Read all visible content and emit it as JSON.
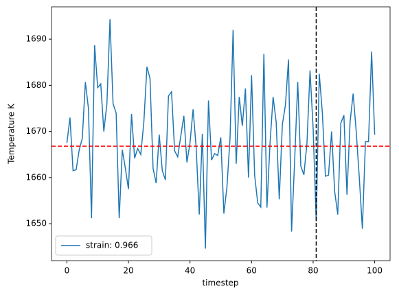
{
  "chart_data": {
    "type": "line",
    "x_label": "timestep",
    "y_label": "Temperature K",
    "x": [
      0,
      1,
      2,
      3,
      4,
      5,
      6,
      7,
      8,
      9,
      10,
      11,
      12,
      13,
      14,
      15,
      16,
      17,
      18,
      19,
      20,
      21,
      22,
      23,
      24,
      25,
      26,
      27,
      28,
      29,
      30,
      31,
      32,
      33,
      34,
      35,
      36,
      37,
      38,
      39,
      40,
      41,
      42,
      43,
      44,
      45,
      46,
      47,
      48,
      49,
      50,
      51,
      52,
      53,
      54,
      55,
      56,
      57,
      58,
      59,
      60,
      61,
      62,
      63,
      64,
      65,
      66,
      67,
      68,
      69,
      70,
      71,
      72,
      73,
      74,
      75,
      76,
      77,
      78,
      79,
      80,
      81,
      82,
      83,
      84,
      85,
      86,
      87,
      88,
      89,
      90,
      91,
      92,
      93,
      94,
      95,
      96,
      97,
      98,
      99,
      100
    ],
    "series": [
      {
        "name": "strain: 0.966",
        "color": "#1f77b4",
        "values": [
          1667.5,
          1673,
          1661.5,
          1661.7,
          1666,
          1668.5,
          1680.7,
          1675,
          1651.2,
          1688.7,
          1679.5,
          1680.3,
          1670,
          1676,
          1694.3,
          1676,
          1674,
          1651.2,
          1666,
          1662,
          1657.5,
          1673.8,
          1664.2,
          1666.3,
          1665,
          1672,
          1684,
          1681.5,
          1662,
          1658.8,
          1669.3,
          1661.5,
          1659.5,
          1677.7,
          1678.6,
          1665.8,
          1664.5,
          1669,
          1673.4,
          1663.3,
          1667.5,
          1674.8,
          1666.5,
          1652,
          1669.5,
          1644.6,
          1676.7,
          1663.8,
          1665.2,
          1664.8,
          1668.7,
          1652.2,
          1658,
          1668.5,
          1692,
          1663,
          1677.5,
          1671.2,
          1679.3,
          1660,
          1682.2,
          1660.5,
          1654.5,
          1653.6,
          1686.8,
          1653.5,
          1667.5,
          1677.5,
          1672,
          1655.3,
          1671.5,
          1675.7,
          1685.6,
          1648.3,
          1663.7,
          1680.7,
          1662.5,
          1660.6,
          1667.5,
          1683.2,
          1670.7,
          1650.5,
          1682.5,
          1674,
          1660.3,
          1660.5,
          1670,
          1657,
          1652,
          1671.8,
          1673.5,
          1656.3,
          1672,
          1678.2,
          1670,
          1660,
          1648.9,
          1667.8,
          1667.8,
          1687.3,
          1669.3
        ]
      }
    ],
    "hline": {
      "value": 1666.8,
      "color": "#ff0000"
    },
    "vline": {
      "value": 81,
      "color": "#000000"
    },
    "xlim": [
      -5,
      105
    ],
    "xticks": [
      0,
      20,
      40,
      60,
      80,
      100
    ],
    "ylim": [
      1642,
      1697
    ],
    "yticks": [
      1650,
      1660,
      1670,
      1680,
      1690
    ],
    "legend": "lower-left"
  }
}
